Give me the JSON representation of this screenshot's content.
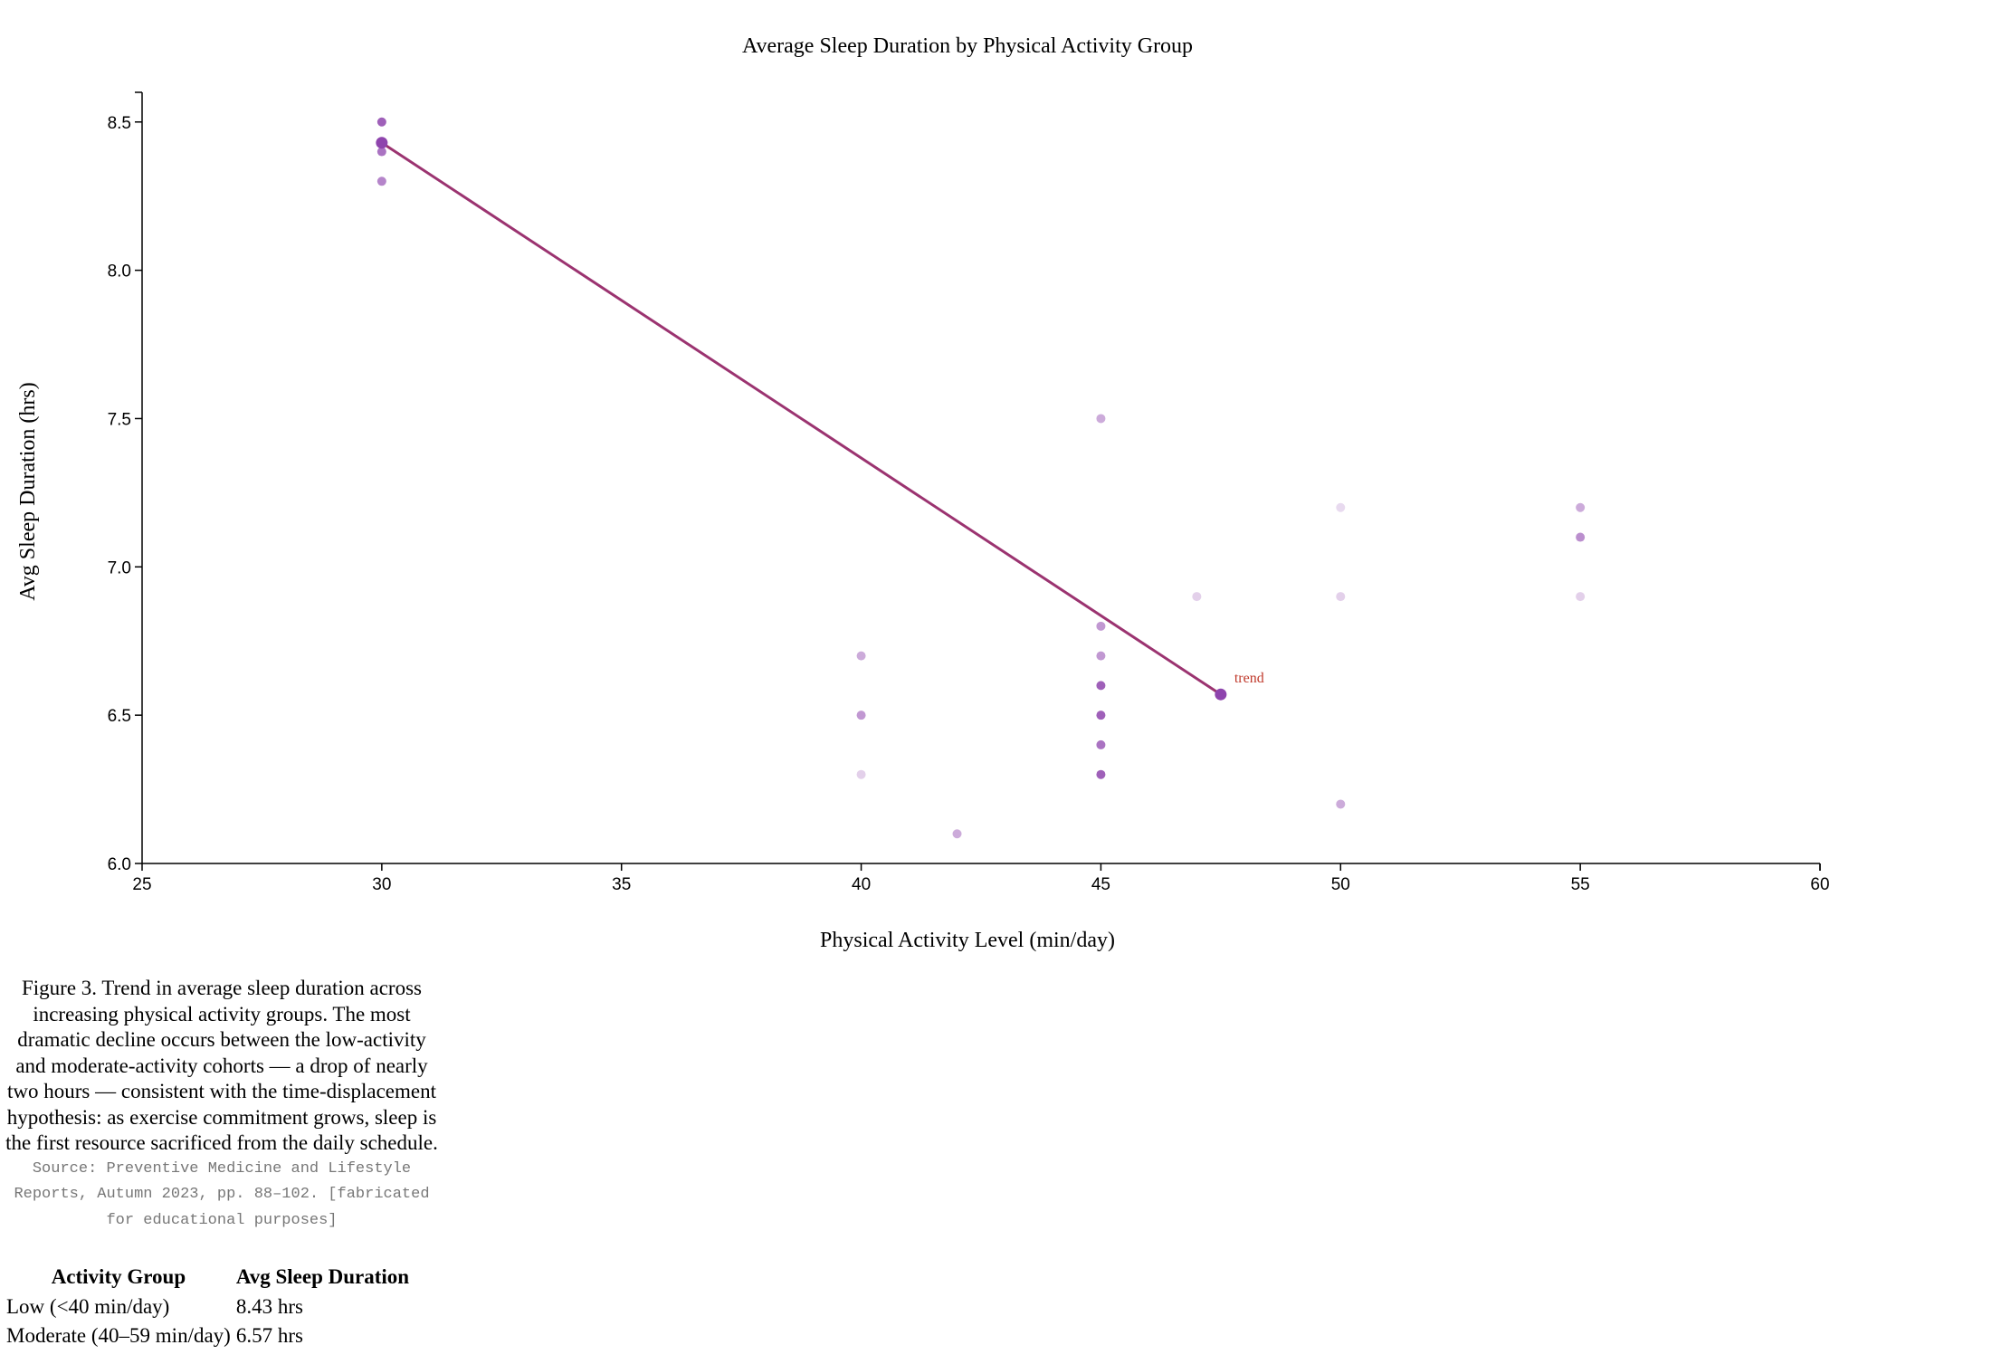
{
  "chart_data": {
    "type": "scatter",
    "title": "Average Sleep Duration by Physical Activity Group",
    "xlabel": "Physical Activity Level (min/day)",
    "ylabel": "Avg Sleep Duration (hrs)",
    "xlim": [
      25,
      60
    ],
    "ylim": [
      6.0,
      8.6
    ],
    "x_ticks": [
      "25",
      "30",
      "35",
      "40",
      "45",
      "50",
      "55",
      "60"
    ],
    "y_ticks": [
      "6.0",
      "6.5",
      "7.0",
      "7.5",
      "8.0",
      "8.5"
    ],
    "grid": false,
    "points": [
      {
        "x": 30,
        "y": 8.5,
        "color": "#8e44ad",
        "opacity": 0.85
      },
      {
        "x": 30,
        "y": 8.4,
        "color": "#8e44ad",
        "opacity": 0.75
      },
      {
        "x": 30,
        "y": 8.3,
        "color": "#8e44ad",
        "opacity": 0.65
      },
      {
        "x": 40,
        "y": 6.7,
        "color": "#8e44ad",
        "opacity": 0.45
      },
      {
        "x": 40,
        "y": 6.5,
        "color": "#8e44ad",
        "opacity": 0.55
      },
      {
        "x": 40,
        "y": 6.3,
        "color": "#8e44ad",
        "opacity": 0.25
      },
      {
        "x": 42,
        "y": 6.1,
        "color": "#8e44ad",
        "opacity": 0.45
      },
      {
        "x": 45,
        "y": 7.5,
        "color": "#8e44ad",
        "opacity": 0.45
      },
      {
        "x": 45,
        "y": 6.8,
        "color": "#8e44ad",
        "opacity": 0.55
      },
      {
        "x": 45,
        "y": 6.7,
        "color": "#8e44ad",
        "opacity": 0.55
      },
      {
        "x": 45,
        "y": 6.6,
        "color": "#8e44ad",
        "opacity": 0.85
      },
      {
        "x": 45,
        "y": 6.5,
        "color": "#8e44ad",
        "opacity": 0.85
      },
      {
        "x": 45,
        "y": 6.4,
        "color": "#8e44ad",
        "opacity": 0.75
      },
      {
        "x": 45,
        "y": 6.3,
        "color": "#8e44ad",
        "opacity": 0.85
      },
      {
        "x": 47,
        "y": 6.9,
        "color": "#8e44ad",
        "opacity": 0.25
      },
      {
        "x": 50,
        "y": 7.2,
        "color": "#8e44ad",
        "opacity": 0.2
      },
      {
        "x": 50,
        "y": 6.9,
        "color": "#8e44ad",
        "opacity": 0.25
      },
      {
        "x": 50,
        "y": 6.2,
        "color": "#8e44ad",
        "opacity": 0.45
      },
      {
        "x": 55,
        "y": 7.2,
        "color": "#8e44ad",
        "opacity": 0.45
      },
      {
        "x": 55,
        "y": 7.1,
        "color": "#8e44ad",
        "opacity": 0.6
      },
      {
        "x": 55,
        "y": 6.9,
        "color": "#8e44ad",
        "opacity": 0.25
      }
    ],
    "trend": {
      "label": "trend",
      "color": "#9b3370",
      "point_color": "#8e44ad",
      "points": [
        {
          "x": 30,
          "y": 8.43
        },
        {
          "x": 47.5,
          "y": 6.57
        }
      ]
    }
  },
  "caption": "Figure 3. Trend in average sleep duration across increasing physical activity groups. The most dramatic decline occurs between the low-activity and moderate-activity cohorts — a drop of nearly two hours — consistent with the time-displacement hypothesis: as exercise commitment grows, sleep is the first resource sacrificed from the daily schedule.",
  "source": "Source: Preventive Medicine and Lifestyle Reports, Autumn 2023, pp. 88–102. [fabricated for educational purposes]",
  "table": {
    "headers": [
      "Activity Group",
      "Avg Sleep Duration"
    ],
    "rows": [
      [
        "Low (<40 min/day)",
        "8.43 hrs"
      ],
      [
        "Moderate (40–59 min/day)",
        "6.57 hrs"
      ]
    ]
  }
}
